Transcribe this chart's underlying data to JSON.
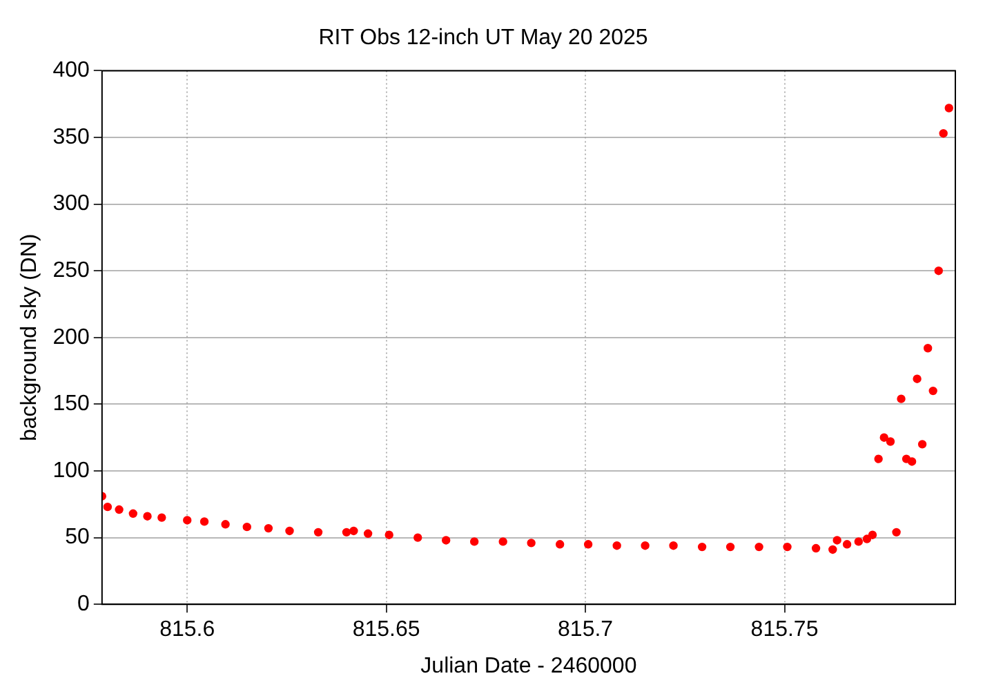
{
  "chart_data": {
    "type": "scatter",
    "title": "RIT Obs 12-inch UT May 20 2025",
    "xlabel": "Julian Date - 2460000",
    "ylabel": "background sky (DN)",
    "xlim": [
      815.5786,
      815.7929
    ],
    "xticks": [
      815.6,
      815.65,
      815.7,
      815.75
    ],
    "ylim": [
      0,
      400
    ],
    "yticks": [
      0,
      50,
      100,
      150,
      200,
      250,
      300,
      350,
      400
    ],
    "grid": true,
    "marker": "circle",
    "series": [
      {
        "color": "#ff0000",
        "x": [
          815.5786,
          815.58,
          815.5829,
          815.5864,
          815.59,
          815.5936,
          815.6,
          815.6043,
          815.6096,
          815.615,
          815.6204,
          815.6257,
          815.6329,
          815.64,
          815.6418,
          815.6454,
          815.6507,
          815.6579,
          815.665,
          815.6721,
          815.6793,
          815.6864,
          815.6936,
          815.7007,
          815.7079,
          815.715,
          815.7221,
          815.7293,
          815.7364,
          815.7436,
          815.7507,
          815.7579,
          815.7621,
          815.7632,
          815.7657,
          815.7686,
          815.7707,
          815.7721,
          815.7736,
          815.775,
          815.7766,
          815.7781,
          815.7793,
          815.7806,
          815.782,
          815.7833,
          815.7846,
          815.786,
          815.7873,
          815.7887,
          815.7899,
          815.7913
        ],
        "values": [
          81,
          73,
          71,
          68,
          66,
          65,
          63,
          62,
          60,
          58,
          57,
          55,
          54,
          54,
          55,
          53,
          52,
          50,
          48,
          47,
          47,
          46,
          45,
          45,
          44,
          44,
          44,
          43,
          43,
          43,
          43,
          42,
          41,
          48,
          45,
          47,
          49,
          52,
          109,
          125,
          122,
          54,
          154,
          109,
          107,
          169,
          120,
          192,
          160,
          250,
          353,
          372
        ]
      }
    ]
  }
}
